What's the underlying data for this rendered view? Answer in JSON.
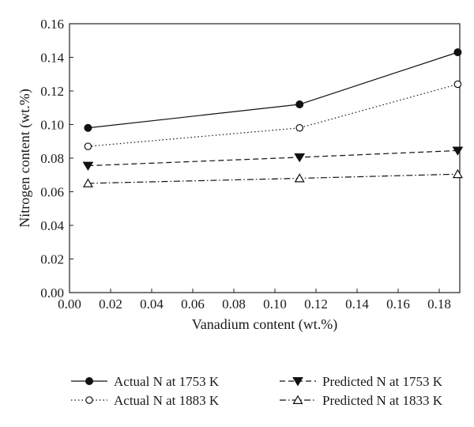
{
  "chart_data": {
    "type": "line",
    "xlabel": "Vanadium content (wt.%)",
    "ylabel": "Nitrogen content (wt.%)",
    "xlim": [
      0.0,
      0.19
    ],
    "ylim": [
      0.0,
      0.16
    ],
    "xticks": [
      "0.00",
      "0.02",
      "0.04",
      "0.06",
      "0.08",
      "0.10",
      "0.12",
      "0.14",
      "0.16",
      "0.18"
    ],
    "yticks": [
      "0.00",
      "0.02",
      "0.04",
      "0.06",
      "0.08",
      "0.10",
      "0.12",
      "0.14",
      "0.16"
    ],
    "grid": false,
    "legend_position": "bottom",
    "series": [
      {
        "name": "Actual N at 1753 K",
        "x": [
          0.009,
          0.112,
          0.189
        ],
        "y": [
          0.098,
          0.112,
          0.143
        ],
        "marker": "filled-circle",
        "line": "solid"
      },
      {
        "name": "Actual N at 1883 K",
        "x": [
          0.009,
          0.112,
          0.189
        ],
        "y": [
          0.087,
          0.098,
          0.124
        ],
        "marker": "open-circle",
        "line": "dotted"
      },
      {
        "name": "Predicted N at 1753 K",
        "x": [
          0.009,
          0.112,
          0.189
        ],
        "y": [
          0.0755,
          0.0805,
          0.0845
        ],
        "marker": "filled-triangle-down",
        "line": "dashed"
      },
      {
        "name": "Predicted N at 1833 K",
        "x": [
          0.009,
          0.112,
          0.189
        ],
        "y": [
          0.065,
          0.068,
          0.0705
        ],
        "marker": "open-triangle-up",
        "line": "dash-dot"
      }
    ]
  }
}
